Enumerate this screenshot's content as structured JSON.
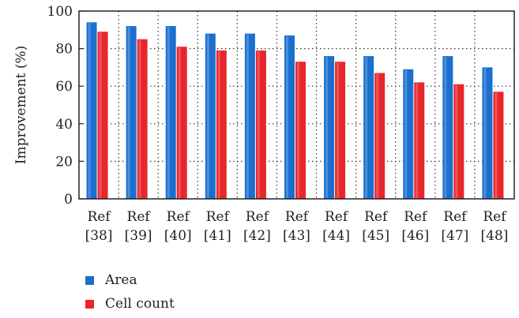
{
  "chart_data": {
    "type": "bar",
    "categories": [
      "Ref [38]",
      "Ref [39]",
      "Ref [40]",
      "Ref [41]",
      "Ref [42]",
      "Ref [43]",
      "Ref [44]",
      "Ref [45]",
      "Ref [46]",
      "Ref [47]",
      "Ref [48]"
    ],
    "category_lines": [
      [
        "Ref",
        "[38]"
      ],
      [
        "Ref",
        "[39]"
      ],
      [
        "Ref",
        "[40]"
      ],
      [
        "Ref",
        "[41]"
      ],
      [
        "Ref",
        "[42]"
      ],
      [
        "Ref",
        "[43]"
      ],
      [
        "Ref",
        "[44]"
      ],
      [
        "Ref",
        "[45]"
      ],
      [
        "Ref",
        "[46]"
      ],
      [
        "Ref",
        "[47]"
      ],
      [
        "Ref",
        "[48]"
      ]
    ],
    "series": [
      {
        "name": "Area",
        "color": "#1a6fcf",
        "values": [
          94,
          92,
          92,
          88,
          88,
          87,
          76,
          76,
          69,
          76,
          70
        ]
      },
      {
        "name": "Cell count",
        "color": "#e8262b",
        "values": [
          89,
          85,
          81,
          79,
          79,
          73,
          73,
          67,
          62,
          61,
          57
        ]
      }
    ],
    "ylabel": "Improvement (%)",
    "ylim": [
      0,
      100
    ],
    "yticks": [
      0,
      20,
      40,
      60,
      80,
      100
    ],
    "grid": true,
    "legend_position": "bottom-left"
  }
}
